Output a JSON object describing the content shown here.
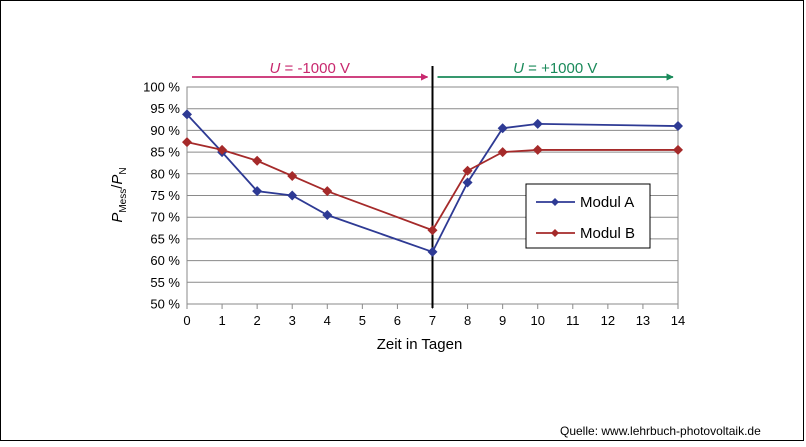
{
  "chart_data": {
    "type": "line",
    "x": [
      0,
      1,
      2,
      3,
      4,
      7,
      8,
      9,
      10,
      14
    ],
    "series": [
      {
        "name": "Modul A",
        "color": "#2e3a94",
        "values": [
          93.7,
          85.0,
          76.0,
          75.0,
          70.5,
          62.0,
          78.0,
          90.5,
          91.5,
          91.0
        ]
      },
      {
        "name": "Modul B",
        "color": "#a52a2a",
        "values": [
          87.3,
          85.5,
          83.0,
          79.5,
          76.0,
          67.0,
          80.7,
          85.0,
          85.5,
          85.5
        ]
      }
    ],
    "xlabel": "Zeit  in Tagen",
    "ylabel": {
      "main1": "P",
      "sub1": "Mess",
      "sep": "/",
      "main2": "P",
      "sub2": "N"
    },
    "xlim": [
      0,
      14
    ],
    "ylim": [
      50,
      100
    ],
    "xticks": [
      "0",
      "1",
      "2",
      "3",
      "4",
      "5",
      "6",
      "7",
      "8",
      "9",
      "10",
      "11",
      "12",
      "13",
      "14"
    ],
    "yticks": [
      "50 %",
      "55 %",
      "60 %",
      "65 %",
      "70 %",
      "75 %",
      "80 %",
      "85 %",
      "90 %",
      "95 %",
      "100 %"
    ],
    "grid": true,
    "legend_position": "right",
    "divider_x": 7,
    "annotations": [
      {
        "label_italic": "U",
        "label_rest": " = -1000 V",
        "color": "#c8286e",
        "from_x": 0,
        "to_x": 7
      },
      {
        "label_italic": "U",
        "label_rest": " = +1000 V",
        "color": "#1a8a5a",
        "from_x": 7,
        "to_x": 14
      }
    ]
  },
  "source": "Quelle: www.lehrbuch-photovoltaik.de"
}
